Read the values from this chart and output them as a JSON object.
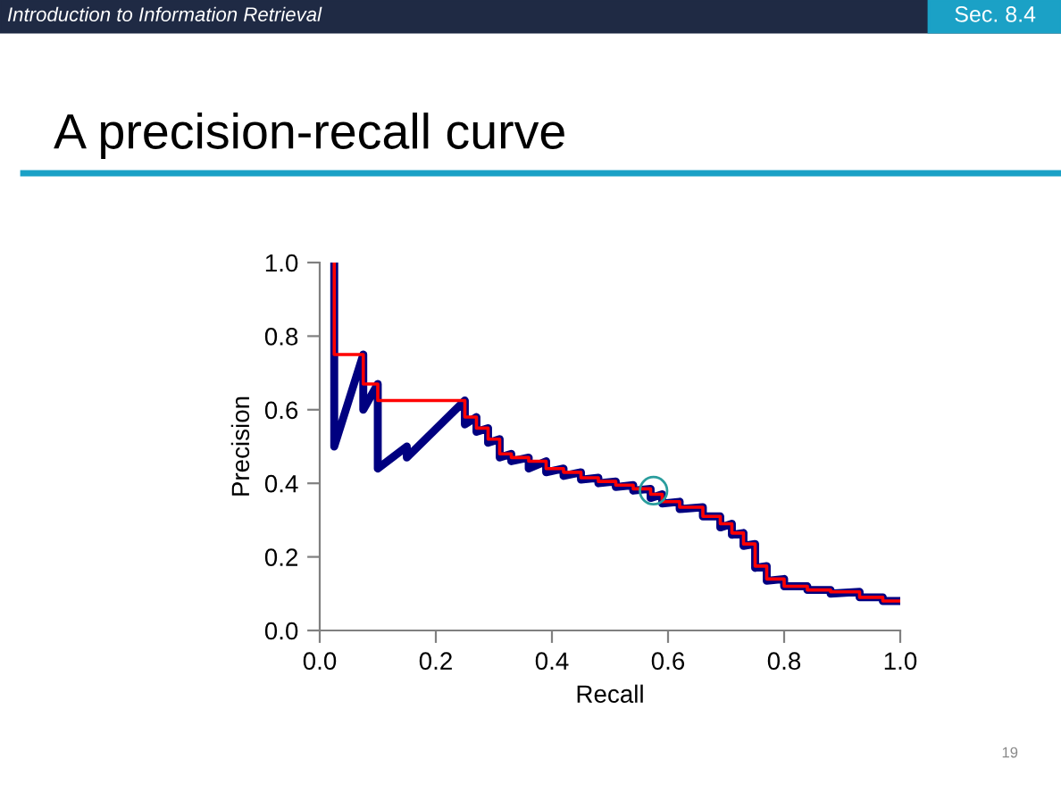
{
  "chart_data": {
    "type": "line",
    "title": "A precision-recall curve",
    "xlabel": "Recall",
    "ylabel": "Precision",
    "annotations": [
      "Introduction to Information Retrieval",
      "Sec. 8.4",
      "19"
    ],
    "xlim": [
      0,
      1
    ],
    "ylim": [
      0,
      1
    ],
    "xticks": [
      {
        "value": 0,
        "label": "0.0"
      },
      {
        "value": 0.2,
        "label": "0.2"
      },
      {
        "value": 0.4,
        "label": "0.4"
      },
      {
        "value": 0.6,
        "label": "0.6"
      },
      {
        "value": 0.8,
        "label": "0.8"
      },
      {
        "value": 1,
        "label": "1.0"
      }
    ],
    "yticks": [
      {
        "value": 0,
        "label": "0.0"
      },
      {
        "value": 0.2,
        "label": "0.2"
      },
      {
        "value": 0.4,
        "label": "0.4"
      },
      {
        "value": 0.6,
        "label": "0.6"
      },
      {
        "value": 0.8,
        "label": "0.8"
      },
      {
        "value": 1,
        "label": "1.0"
      }
    ],
    "grid": false,
    "legend": false,
    "series": [
      {
        "color": "#000080",
        "x": [
          0.025,
          0.025,
          0.075,
          0.075,
          0.1,
          0.1,
          0.15,
          0.15,
          0.25,
          0.25,
          0.27,
          0.27,
          0.29,
          0.29,
          0.31,
          0.31,
          0.33,
          0.33,
          0.36,
          0.36,
          0.39,
          0.39,
          0.42,
          0.42,
          0.45,
          0.45,
          0.48,
          0.48,
          0.51,
          0.51,
          0.54,
          0.54,
          0.57,
          0.57,
          0.59,
          0.59,
          0.62,
          0.62,
          0.66,
          0.66,
          0.69,
          0.69,
          0.71,
          0.71,
          0.73,
          0.73,
          0.75,
          0.75,
          0.77,
          0.77,
          0.8,
          0.8,
          0.84,
          0.84,
          0.88,
          0.88,
          0.93,
          0.93,
          0.97,
          0.97,
          1.0
        ],
        "values": [
          1.0,
          0.5,
          0.75,
          0.6,
          0.67,
          0.44,
          0.5,
          0.47,
          0.625,
          0.56,
          0.58,
          0.54,
          0.55,
          0.51,
          0.52,
          0.47,
          0.48,
          0.46,
          0.47,
          0.44,
          0.46,
          0.43,
          0.44,
          0.42,
          0.43,
          0.41,
          0.415,
          0.4,
          0.405,
          0.39,
          0.395,
          0.38,
          0.385,
          0.36,
          0.37,
          0.345,
          0.35,
          0.33,
          0.335,
          0.31,
          0.31,
          0.28,
          0.29,
          0.26,
          0.265,
          0.23,
          0.235,
          0.17,
          0.175,
          0.135,
          0.14,
          0.12,
          0.12,
          0.11,
          0.11,
          0.1,
          0.105,
          0.09,
          0.09,
          0.08,
          0.08
        ]
      },
      {
        "color": "#ff0000",
        "x": [
          0.025,
          0.025,
          0.075,
          0.075,
          0.1,
          0.1,
          0.25,
          0.25,
          0.27,
          0.27,
          0.29,
          0.29,
          0.31,
          0.31,
          0.33,
          0.33,
          0.36,
          0.36,
          0.39,
          0.39,
          0.42,
          0.42,
          0.45,
          0.45,
          0.48,
          0.48,
          0.51,
          0.51,
          0.54,
          0.54,
          0.57,
          0.57,
          0.59,
          0.59,
          0.62,
          0.62,
          0.66,
          0.66,
          0.69,
          0.69,
          0.71,
          0.71,
          0.73,
          0.73,
          0.75,
          0.75,
          0.77,
          0.77,
          0.8,
          0.8,
          0.84,
          0.84,
          0.88,
          0.88,
          0.93,
          0.93,
          0.97,
          0.97,
          1.0
        ],
        "values": [
          1.0,
          0.75,
          0.75,
          0.67,
          0.67,
          0.625,
          0.625,
          0.58,
          0.58,
          0.55,
          0.55,
          0.52,
          0.52,
          0.48,
          0.48,
          0.47,
          0.47,
          0.46,
          0.46,
          0.44,
          0.44,
          0.43,
          0.43,
          0.415,
          0.415,
          0.405,
          0.405,
          0.395,
          0.395,
          0.385,
          0.385,
          0.37,
          0.37,
          0.35,
          0.35,
          0.335,
          0.335,
          0.31,
          0.31,
          0.29,
          0.29,
          0.265,
          0.265,
          0.235,
          0.235,
          0.175,
          0.175,
          0.14,
          0.14,
          0.12,
          0.12,
          0.11,
          0.11,
          0.105,
          0.105,
          0.09,
          0.09,
          0.08,
          0.08
        ]
      },
      {
        "color": "#2a9d9d",
        "type": "scatter",
        "marker": "circle",
        "x": [
          0.575
        ],
        "values": [
          0.38
        ]
      }
    ]
  }
}
